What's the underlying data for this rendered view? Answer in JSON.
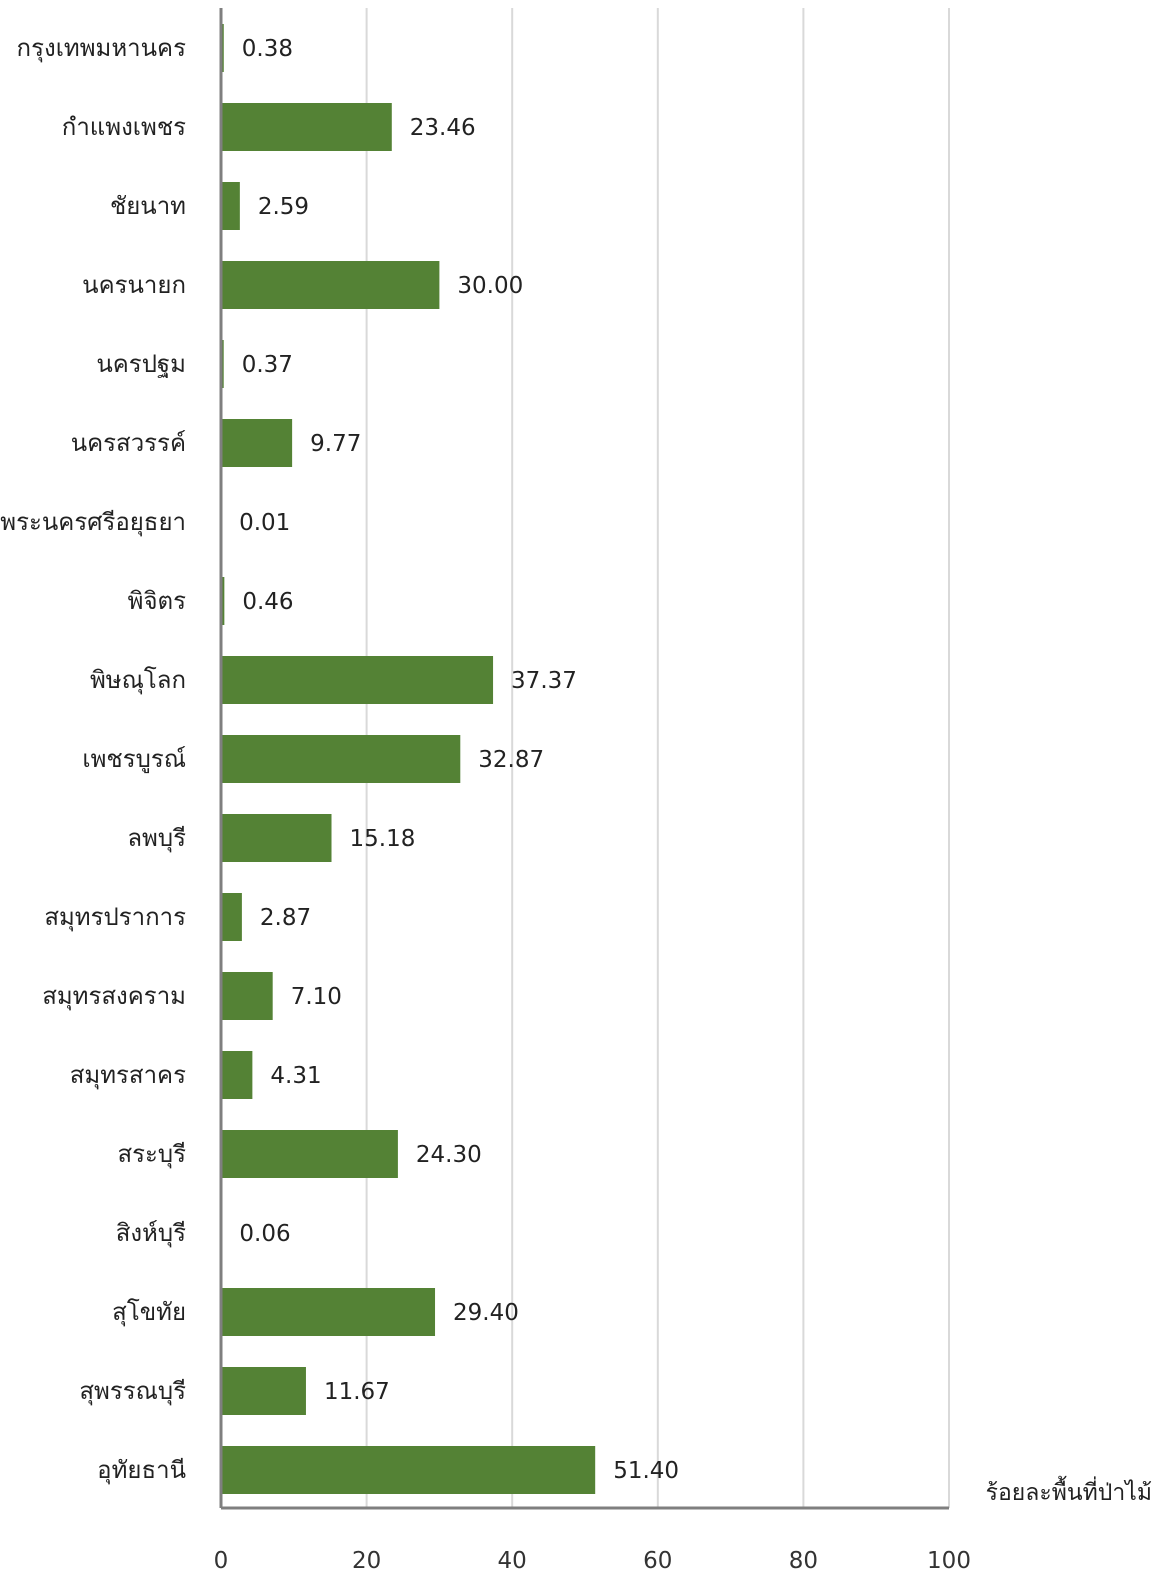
{
  "chart_data": {
    "type": "bar",
    "orientation": "horizontal",
    "categories": [
      "กรุงเทพมหานคร",
      "กำแพงเพชร",
      "ชัยนาท",
      "นครนายก",
      "นครปฐม",
      "นครสวรรค์",
      "พระนครศรีอยุธยา",
      "พิจิตร",
      "พิษณุโลก",
      "เพชรบูรณ์",
      "ลพบุรี",
      "สมุทรปราการ",
      "สมุทรสงคราม",
      "สมุทรสาคร",
      "สระบุรี",
      "สิงห์บุรี",
      "สุโขทัย",
      "สุพรรณบุรี",
      "อุทัยธานี"
    ],
    "values": [
      0.38,
      23.46,
      2.59,
      30.0,
      0.37,
      9.77,
      0.01,
      0.46,
      37.37,
      32.87,
      15.18,
      2.87,
      7.1,
      4.31,
      24.3,
      0.06,
      29.4,
      11.67,
      51.4
    ],
    "value_labels": [
      "0.38",
      "23.46",
      "2.59",
      "30.00",
      "0.37",
      "9.77",
      "0.01",
      "0.46",
      "37.37",
      "32.87",
      "15.18",
      "2.87",
      "7.10",
      "4.31",
      "24.30",
      "0.06",
      "29.40",
      "11.67",
      "51.40"
    ],
    "x_ticks": [
      "0",
      "20",
      "40",
      "60",
      "80",
      "100"
    ],
    "xlim": [
      0,
      100
    ],
    "xlabel": "ร้อยละพื้นที่ป่าไม้",
    "title": "",
    "grid": true,
    "colors": {
      "bar": "#548235",
      "grid": "#d9d9d9",
      "axis": "#7f7f7f"
    }
  }
}
